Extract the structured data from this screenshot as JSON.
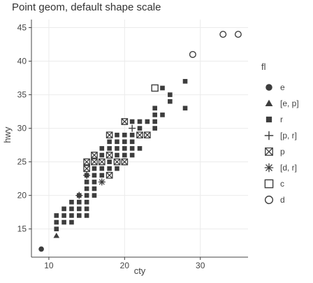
{
  "chart_data": {
    "type": "scatter",
    "title": "Point geom, default shape scale",
    "xlabel": "cty",
    "ylabel": "hwy",
    "xlim": [
      7.7,
      36.3
    ],
    "ylim": [
      10.8,
      46.2
    ],
    "xticks": [
      10,
      20,
      30
    ],
    "yticks": [
      15,
      20,
      25,
      30,
      35,
      40,
      45
    ],
    "grid": true,
    "legend_placement": "right",
    "legend_title": "fl",
    "marker_color": "#3d3d3d",
    "series": [
      {
        "name": "e",
        "shape": "circle-filled",
        "points": [
          [
            9,
            12
          ]
        ]
      },
      {
        "name": "[e, p]",
        "shape": "triangle-filled",
        "points": [
          [
            11,
            14
          ]
        ]
      },
      {
        "name": "r",
        "shape": "square-filled",
        "points": [
          [
            11,
            15
          ],
          [
            11,
            16
          ],
          [
            11,
            17
          ],
          [
            12,
            16
          ],
          [
            12,
            17
          ],
          [
            12,
            18
          ],
          [
            13,
            16
          ],
          [
            13,
            17
          ],
          [
            13,
            18
          ],
          [
            13,
            19
          ],
          [
            14,
            17
          ],
          [
            14,
            18
          ],
          [
            14,
            19
          ],
          [
            14,
            20
          ],
          [
            15,
            17
          ],
          [
            15,
            18
          ],
          [
            15,
            19
          ],
          [
            15,
            20
          ],
          [
            15,
            21
          ],
          [
            15,
            22
          ],
          [
            15,
            23
          ],
          [
            15,
            24
          ],
          [
            16,
            20
          ],
          [
            16,
            21
          ],
          [
            16,
            22
          ],
          [
            16,
            23
          ],
          [
            16,
            24
          ],
          [
            16,
            25
          ],
          [
            17,
            23
          ],
          [
            17,
            24
          ],
          [
            17,
            25
          ],
          [
            17,
            26
          ],
          [
            17,
            27
          ],
          [
            18,
            24
          ],
          [
            18,
            25
          ],
          [
            18,
            26
          ],
          [
            18,
            27
          ],
          [
            18,
            28
          ],
          [
            19,
            24
          ],
          [
            19,
            25
          ],
          [
            19,
            26
          ],
          [
            19,
            27
          ],
          [
            19,
            28
          ],
          [
            19,
            29
          ],
          [
            20,
            26
          ],
          [
            20,
            27
          ],
          [
            20,
            28
          ],
          [
            20,
            29
          ],
          [
            21,
            26
          ],
          [
            21,
            27
          ],
          [
            21,
            28
          ],
          [
            21,
            29
          ],
          [
            21,
            31
          ],
          [
            22,
            27
          ],
          [
            22,
            30
          ],
          [
            22,
            31
          ],
          [
            23,
            29
          ],
          [
            23,
            31
          ],
          [
            24,
            30
          ],
          [
            24,
            31
          ],
          [
            24,
            32
          ],
          [
            24,
            33
          ],
          [
            25,
            32
          ],
          [
            25,
            36
          ],
          [
            26,
            34
          ],
          [
            26,
            35
          ],
          [
            28,
            33
          ],
          [
            28,
            37
          ]
        ]
      },
      {
        "name": "[p, r]",
        "shape": "plus",
        "points": [
          [
            14,
            20
          ],
          [
            15,
            23
          ],
          [
            21,
            30
          ]
        ]
      },
      {
        "name": "p",
        "shape": "square-cross",
        "points": [
          [
            15,
            24
          ],
          [
            15,
            25
          ],
          [
            16,
            25
          ],
          [
            16,
            26
          ],
          [
            17,
            25
          ],
          [
            18,
            26
          ],
          [
            18,
            29
          ],
          [
            19,
            25
          ],
          [
            20,
            25
          ],
          [
            20,
            31
          ],
          [
            22,
            29
          ],
          [
            23,
            29
          ],
          [
            18,
            23
          ]
        ]
      },
      {
        "name": "[d, r]",
        "shape": "asterisk",
        "points": [
          [
            17,
            22
          ]
        ]
      },
      {
        "name": "c",
        "shape": "square-open",
        "points": [
          [
            24,
            36
          ]
        ]
      },
      {
        "name": "d",
        "shape": "circle-open",
        "points": [
          [
            29,
            41
          ],
          [
            33,
            44
          ],
          [
            35,
            44
          ]
        ]
      }
    ]
  }
}
